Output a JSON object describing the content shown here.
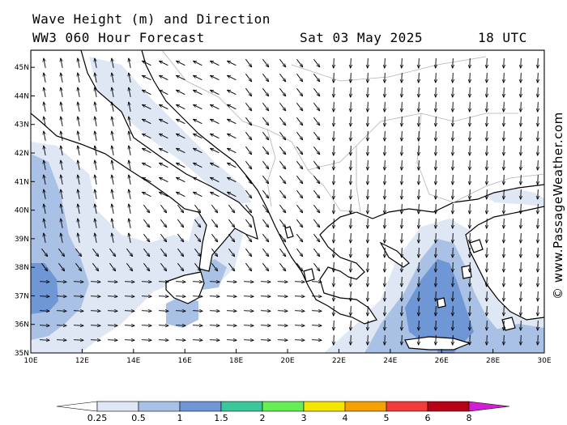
{
  "header": {
    "line1": "Wave Height (m) and Direction",
    "line2": "WW3 060 Hour Forecast",
    "date": "Sat 03 May 2025",
    "time": "18 UTC"
  },
  "credit": "© www.PassageWeather.com",
  "map": {
    "lon_ticks": [
      "10E",
      "12E",
      "14E",
      "16E",
      "18E",
      "20E",
      "22E",
      "24E",
      "26E",
      "28E",
      "30E"
    ],
    "lat_ticks": [
      "35N",
      "36N",
      "37N",
      "38N",
      "39N",
      "40N",
      "41N",
      "42N",
      "43N",
      "44N",
      "45N"
    ],
    "lon_range": [
      10,
      30
    ],
    "lat_range": [
      35,
      45.6
    ]
  },
  "legend": {
    "labels": [
      "0.25",
      "0.5",
      "1",
      "1.5",
      "2",
      "3",
      "4",
      "5",
      "6",
      "8"
    ],
    "colors": [
      "#ffffff",
      "#dfe7f4",
      "#a9c1e4",
      "#6f97d6",
      "#3cc79b",
      "#66ee55",
      "#f4e600",
      "#f4a200",
      "#f23c3c",
      "#b80018",
      "#d21ed2"
    ]
  }
}
